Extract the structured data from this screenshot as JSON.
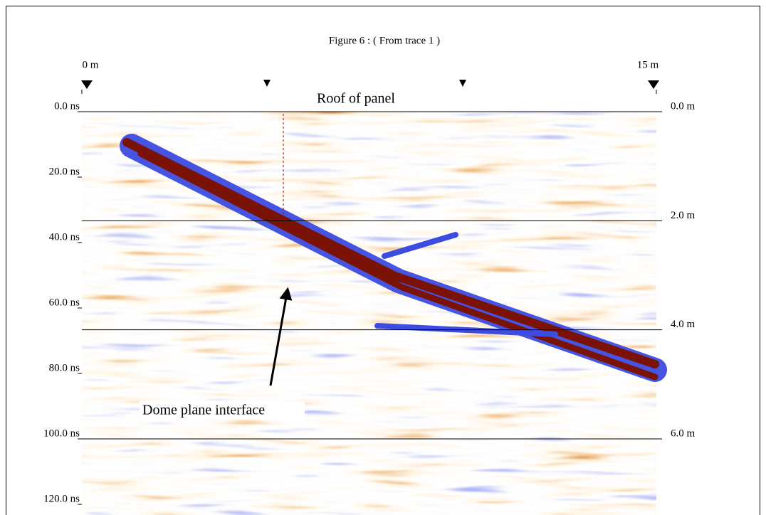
{
  "chart_data": {
    "type": "radargram",
    "title": "Figure 6 : ( From trace 1 )",
    "xlim": [
      0,
      15
    ],
    "xticks": [
      {
        "value": 0,
        "label": "0 m"
      },
      {
        "value": 15,
        "label": "15 m"
      }
    ],
    "ylim": [
      0,
      120
    ],
    "yticks": [
      {
        "value": 0,
        "label": "0.0 ns"
      },
      {
        "value": 20,
        "label": "20.0 ns"
      },
      {
        "value": 40,
        "label": "40.0 ns"
      },
      {
        "value": 60,
        "label": "60.0 ns"
      },
      {
        "value": 80,
        "label": "80.0 ns"
      },
      {
        "value": 100,
        "label": "100.0 ns"
      },
      {
        "value": 120,
        "label": "120.0 ns"
      }
    ],
    "y2lim": [
      0,
      7.2
    ],
    "y2ticks": [
      {
        "value": 0,
        "label": "0.0 m"
      },
      {
        "value": 2,
        "label": "2.0 m"
      },
      {
        "value": 4,
        "label": "4.0 m"
      },
      {
        "value": 6,
        "label": "6.0 m"
      }
    ],
    "annotations": [
      "Roof of panel",
      "Dome plane interface"
    ]
  }
}
